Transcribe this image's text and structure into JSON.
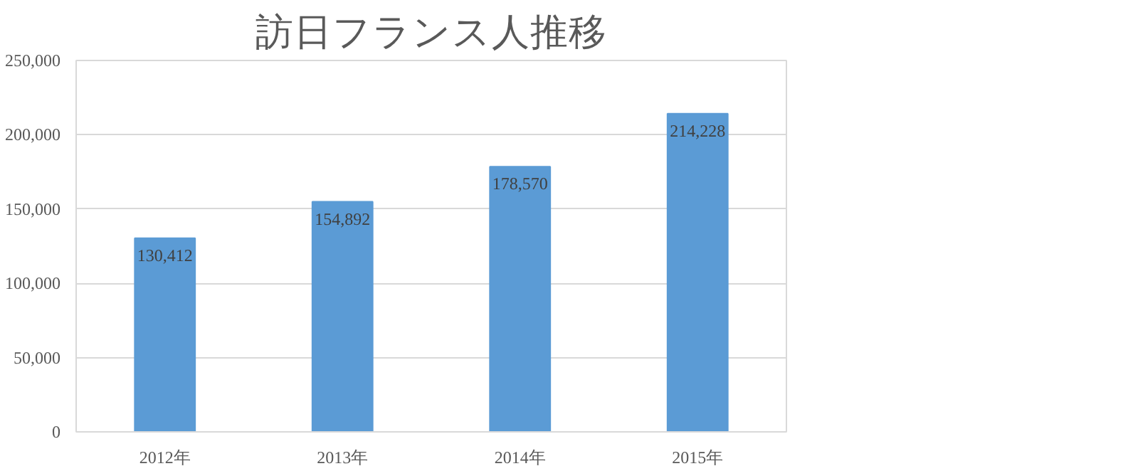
{
  "chart_data": {
    "type": "bar",
    "title": "訪日フランス人推移",
    "categories": [
      "2012年",
      "2013年",
      "2014年",
      "2015年"
    ],
    "values": [
      130412,
      154892,
      178570,
      214228
    ],
    "color": "#5b9bd5",
    "ylim": [
      0,
      250000
    ],
    "yticks": [
      {
        "value": 0,
        "label": "0"
      },
      {
        "value": 50000,
        "label": "50,000"
      },
      {
        "value": 100000,
        "label": "100,000"
      },
      {
        "value": 150000,
        "label": "150,000"
      },
      {
        "value": 200000,
        "label": "200,000"
      },
      {
        "value": 250000,
        "label": "250,000"
      }
    ],
    "grid": "y",
    "value_labels": [
      "130,412",
      "154,892",
      "178,570",
      "214,228"
    ]
  }
}
